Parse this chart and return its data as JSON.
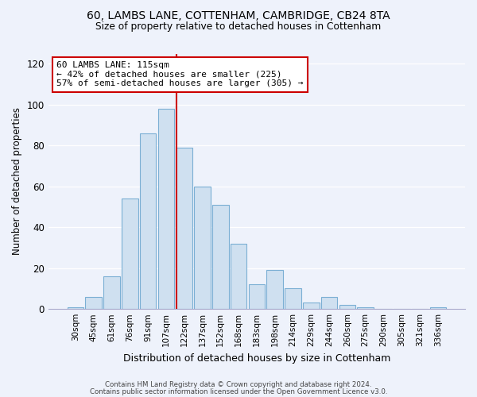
{
  "title": "60, LAMBS LANE, COTTENHAM, CAMBRIDGE, CB24 8TA",
  "subtitle": "Size of property relative to detached houses in Cottenham",
  "xlabel": "Distribution of detached houses by size in Cottenham",
  "ylabel": "Number of detached properties",
  "bar_labels": [
    "30sqm",
    "45sqm",
    "61sqm",
    "76sqm",
    "91sqm",
    "107sqm",
    "122sqm",
    "137sqm",
    "152sqm",
    "168sqm",
    "183sqm",
    "198sqm",
    "214sqm",
    "229sqm",
    "244sqm",
    "260sqm",
    "275sqm",
    "290sqm",
    "305sqm",
    "321sqm",
    "336sqm"
  ],
  "bar_heights": [
    1,
    6,
    16,
    54,
    86,
    98,
    79,
    60,
    51,
    32,
    12,
    19,
    10,
    3,
    6,
    2,
    1,
    0,
    0,
    0,
    1
  ],
  "bar_color": "#cfe0f0",
  "bar_edge_color": "#7bafd4",
  "vline_x_index": 5.57,
  "vline_color": "#cc0000",
  "annotation_title": "60 LAMBS LANE: 115sqm",
  "annotation_line1": "← 42% of detached houses are smaller (225)",
  "annotation_line2": "57% of semi-detached houses are larger (305) →",
  "annotation_box_facecolor": "#ffffff",
  "annotation_box_edgecolor": "#cc0000",
  "ylim": [
    0,
    125
  ],
  "yticks": [
    0,
    20,
    40,
    60,
    80,
    100,
    120
  ],
  "footer_line1": "Contains HM Land Registry data © Crown copyright and database right 2024.",
  "footer_line2": "Contains public sector information licensed under the Open Government Licence v3.0.",
  "bg_color": "#eef2fb",
  "grid_color": "#ffffff",
  "spine_color": "#aaaacc"
}
